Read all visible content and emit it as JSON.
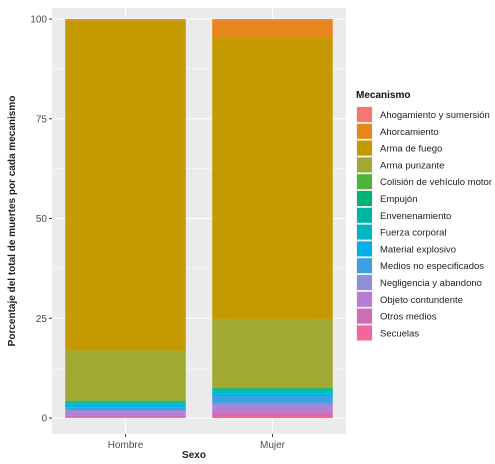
{
  "chart_data": {
    "type": "bar",
    "stacked": true,
    "title": "",
    "xlabel": "Sexo",
    "ylabel": "Porcentaje del total de muertes por cada mecanismo",
    "ylim": [
      0,
      100
    ],
    "yticks": [
      "0",
      "25",
      "50",
      "75",
      "100"
    ],
    "grid": true,
    "legend_title": "Mecanismo",
    "legend_position": "right",
    "categories": [
      "Hombre",
      "Mujer"
    ],
    "series": [
      {
        "name": "Ahogamiento y sumersión",
        "color": "#F8766D",
        "values": [
          0.3,
          0.3
        ]
      },
      {
        "name": "Ahorcamiento",
        "color": "#E7861A",
        "values": [
          0.0,
          4.2
        ]
      },
      {
        "name": "Arma de fuego",
        "color": "#C49A00",
        "values": [
          82.8,
          70.7
        ]
      },
      {
        "name": "Arma punzante",
        "color": "#A1A833",
        "values": [
          12.5,
          17.1
        ]
      },
      {
        "name": "Colisión de vehículo motor",
        "color": "#4DB33D",
        "values": [
          0.3,
          0.3
        ]
      },
      {
        "name": "Empujón",
        "color": "#00B37B",
        "values": [
          0.2,
          0.2
        ]
      },
      {
        "name": "Envenenamiento",
        "color": "#00B4A6",
        "values": [
          0.2,
          0.6
        ]
      },
      {
        "name": "Fuerza corporal",
        "color": "#00B6C3",
        "values": [
          0.3,
          0.4
        ]
      },
      {
        "name": "Material explosivo",
        "color": "#00B0E6",
        "values": [
          0.7,
          0.8
        ]
      },
      {
        "name": "Medios no especificados",
        "color": "#3F9FE0",
        "values": [
          0.8,
          1.8
        ]
      },
      {
        "name": "Negligencia y abandono",
        "color": "#8F8FD8",
        "values": [
          0.3,
          0.7
        ]
      },
      {
        "name": "Objeto contundente",
        "color": "#B77CD4",
        "values": [
          1.0,
          1.5
        ]
      },
      {
        "name": "Otros medios",
        "color": "#D06BB6",
        "values": [
          0.4,
          0.9
        ]
      },
      {
        "name": "Secuelas",
        "color": "#F564A0",
        "values": [
          0.2,
          0.5
        ]
      }
    ]
  }
}
